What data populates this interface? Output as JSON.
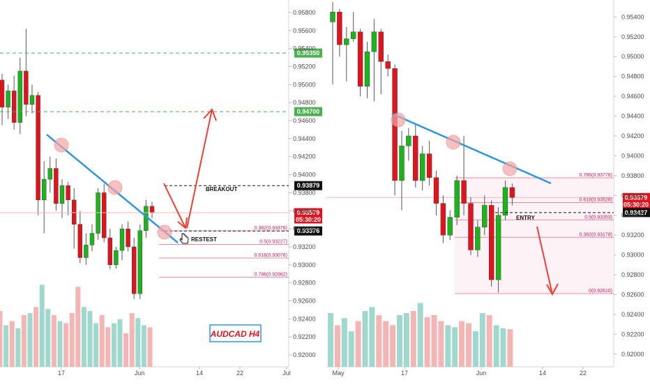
{
  "colors": {
    "up": "#1fb21f",
    "down": "#e0141e",
    "vol_up": "#8fd1c6",
    "vol_down": "#f2a8a8",
    "trend": "#2f96dd",
    "fib": "#e98aa0",
    "target_green": "#4caf50",
    "arrow": "#ef3e36",
    "highlight": "#f3a6a6"
  },
  "left_panel": {
    "price_ticks": [
      "0.95800",
      "0.95600",
      "0.95400",
      "0.95200",
      "0.95000",
      "0.94800",
      "0.94600",
      "0.94400",
      "0.94200",
      "0.94000",
      "0.93800",
      "0.93600",
      "0.93400",
      "0.93200",
      "0.93000",
      "0.92800",
      "0.92600",
      "0.92400",
      "0.92200",
      "0.92000"
    ],
    "date_ticks": [
      "17",
      "Jun",
      "14",
      "22",
      "Jul"
    ],
    "badges": [
      {
        "key": "g1",
        "text": "0.95350",
        "price": 0.9535,
        "bg": "#4caf50",
        "fg": "#ffffff"
      },
      {
        "key": "g2",
        "text": "0.94700",
        "price": 0.947,
        "bg": "#4caf50",
        "fg": "#ffffff"
      },
      {
        "key": "brk",
        "text": "0.93879",
        "price": 0.93879,
        "bg": "#111111",
        "fg": "#ffffff"
      },
      {
        "key": "cur",
        "text": "0.93579",
        "sub": "05:30:20",
        "price": 0.93579,
        "bg": "#e0141e",
        "fg": "#ffffff"
      },
      {
        "key": "lvl",
        "text": "0.93376",
        "price": 0.93376,
        "bg": "#111111",
        "fg": "#ffffff"
      }
    ],
    "fib_levels": [
      {
        "label": "0.382(0.93378)",
        "price": 0.93378
      },
      {
        "label": "0.5(0.93227)",
        "price": 0.93227
      },
      {
        "label": "0.618(0.93076)",
        "price": 0.93076
      },
      {
        "label": "0.786(0.92862)",
        "price": 0.92862
      }
    ],
    "breakout_label": "BREAKOUT",
    "retest_label": "RESTEST",
    "symbol_label": "AUDCAD H4"
  },
  "right_panel": {
    "price_ticks": [
      "0.95400",
      "0.95200",
      "0.95000",
      "0.94800",
      "0.94600",
      "0.94400",
      "0.94200",
      "0.94000",
      "0.93800",
      "0.93600",
      "0.93400",
      "0.93200",
      "0.93000",
      "0.92800",
      "0.92600",
      "0.92400",
      "0.92200",
      "0.92000"
    ],
    "date_ticks": [
      "May",
      "17",
      "Jun",
      "14",
      "22"
    ],
    "badges": [
      {
        "key": "cur",
        "text": "0.93579",
        "sub": "05:30:20",
        "price": 0.93579,
        "bg": "#e0141e",
        "fg": "#ffffff"
      },
      {
        "key": "entry",
        "text": "0.93427",
        "price": 0.93427,
        "bg": "#111111",
        "fg": "#ffffff"
      }
    ],
    "fib_levels": [
      {
        "label": "0.786(0.93778)",
        "price": 0.93778
      },
      {
        "label": "0.618(0.93528)",
        "price": 0.93528
      },
      {
        "label": "0.5(0.93353)",
        "price": 0.93353
      },
      {
        "label": "0.382(0.93178)",
        "price": 0.93178
      },
      {
        "label": "0(0.92610)",
        "price": 0.9261
      }
    ],
    "entry_label": "ENTRY"
  },
  "chart_data": [
    {
      "type": "candlestick",
      "title": "AUDCAD H4",
      "ylim": [
        0.919,
        0.959
      ],
      "x_ticks": [
        "17",
        "Jun",
        "14",
        "22",
        "Jul"
      ],
      "candles": [
        {
          "o": 0.9505,
          "h": 0.9512,
          "l": 0.9455,
          "c": 0.9475
        },
        {
          "o": 0.9475,
          "h": 0.95,
          "l": 0.9462,
          "c": 0.9493
        },
        {
          "o": 0.9493,
          "h": 0.951,
          "l": 0.945,
          "c": 0.9458
        },
        {
          "o": 0.9458,
          "h": 0.953,
          "l": 0.9445,
          "c": 0.9515
        },
        {
          "o": 0.9515,
          "h": 0.9562,
          "l": 0.9465,
          "c": 0.9478
        },
        {
          "o": 0.9478,
          "h": 0.95,
          "l": 0.9468,
          "c": 0.9488
        },
        {
          "o": 0.9488,
          "h": 0.9492,
          "l": 0.9355,
          "c": 0.9372
        },
        {
          "o": 0.9372,
          "h": 0.9415,
          "l": 0.9335,
          "c": 0.9395
        },
        {
          "o": 0.9395,
          "h": 0.942,
          "l": 0.938,
          "c": 0.9407
        },
        {
          "o": 0.9407,
          "h": 0.9418,
          "l": 0.936,
          "c": 0.9368
        },
        {
          "o": 0.9368,
          "h": 0.9395,
          "l": 0.9352,
          "c": 0.9388
        },
        {
          "o": 0.9388,
          "h": 0.9392,
          "l": 0.9355,
          "c": 0.9372
        },
        {
          "o": 0.9372,
          "h": 0.9385,
          "l": 0.9318,
          "c": 0.9345
        },
        {
          "o": 0.9345,
          "h": 0.936,
          "l": 0.9302,
          "c": 0.9308
        },
        {
          "o": 0.9308,
          "h": 0.9335,
          "l": 0.93,
          "c": 0.9322
        },
        {
          "o": 0.9322,
          "h": 0.9345,
          "l": 0.9315,
          "c": 0.9335
        },
        {
          "o": 0.9335,
          "h": 0.9385,
          "l": 0.9328,
          "c": 0.938
        },
        {
          "o": 0.938,
          "h": 0.939,
          "l": 0.9325,
          "c": 0.933
        },
        {
          "o": 0.933,
          "h": 0.934,
          "l": 0.9295,
          "c": 0.93
        },
        {
          "o": 0.93,
          "h": 0.932,
          "l": 0.9296,
          "c": 0.9316
        },
        {
          "o": 0.9316,
          "h": 0.9345,
          "l": 0.9305,
          "c": 0.934
        },
        {
          "o": 0.934,
          "h": 0.9348,
          "l": 0.9315,
          "c": 0.932
        },
        {
          "o": 0.932,
          "h": 0.933,
          "l": 0.9262,
          "c": 0.9268
        },
        {
          "o": 0.9268,
          "h": 0.9345,
          "l": 0.9262,
          "c": 0.9338
        },
        {
          "o": 0.9338,
          "h": 0.9372,
          "l": 0.933,
          "c": 0.9365
        },
        {
          "o": 0.9365,
          "h": 0.937,
          "l": 0.9352,
          "c": 0.9358
        }
      ],
      "volume": [
        62,
        48,
        52,
        45,
        58,
        60,
        66,
        88,
        64,
        58,
        52,
        50,
        60,
        86,
        66,
        62,
        50,
        58,
        46,
        50,
        54,
        40,
        60,
        55,
        48,
        46
      ]
    },
    {
      "type": "candlestick",
      "ylim": [
        0.919,
        0.9555
      ],
      "x_ticks": [
        "May",
        "17",
        "Jun",
        "14",
        "22"
      ],
      "candles": [
        {
          "o": 0.9535,
          "h": 0.9555,
          "l": 0.9472,
          "c": 0.9545
        },
        {
          "o": 0.9545,
          "h": 0.9548,
          "l": 0.95,
          "c": 0.9512
        },
        {
          "o": 0.9512,
          "h": 0.953,
          "l": 0.9475,
          "c": 0.9518
        },
        {
          "o": 0.9518,
          "h": 0.9545,
          "l": 0.9515,
          "c": 0.9525
        },
        {
          "o": 0.9525,
          "h": 0.9528,
          "l": 0.946,
          "c": 0.947
        },
        {
          "o": 0.947,
          "h": 0.9515,
          "l": 0.9458,
          "c": 0.9505
        },
        {
          "o": 0.9505,
          "h": 0.9538,
          "l": 0.9455,
          "c": 0.9525
        },
        {
          "o": 0.9525,
          "h": 0.9528,
          "l": 0.9462,
          "c": 0.9495
        },
        {
          "o": 0.9495,
          "h": 0.9502,
          "l": 0.948,
          "c": 0.9488
        },
        {
          "o": 0.9488,
          "h": 0.9492,
          "l": 0.936,
          "c": 0.9375
        },
        {
          "o": 0.9375,
          "h": 0.9425,
          "l": 0.9345,
          "c": 0.941
        },
        {
          "o": 0.941,
          "h": 0.9428,
          "l": 0.9395,
          "c": 0.942
        },
        {
          "o": 0.942,
          "h": 0.9432,
          "l": 0.9368,
          "c": 0.9375
        },
        {
          "o": 0.9375,
          "h": 0.941,
          "l": 0.9365,
          "c": 0.9402
        },
        {
          "o": 0.9402,
          "h": 0.9415,
          "l": 0.937,
          "c": 0.9378
        },
        {
          "o": 0.9378,
          "h": 0.9385,
          "l": 0.934,
          "c": 0.9352
        },
        {
          "o": 0.9352,
          "h": 0.936,
          "l": 0.9312,
          "c": 0.932
        },
        {
          "o": 0.932,
          "h": 0.9345,
          "l": 0.9315,
          "c": 0.9338
        },
        {
          "o": 0.9338,
          "h": 0.938,
          "l": 0.933,
          "c": 0.9375
        },
        {
          "o": 0.9375,
          "h": 0.942,
          "l": 0.934,
          "c": 0.9352
        },
        {
          "o": 0.9352,
          "h": 0.9358,
          "l": 0.93,
          "c": 0.9305
        },
        {
          "o": 0.9305,
          "h": 0.9335,
          "l": 0.9298,
          "c": 0.9328
        },
        {
          "o": 0.9328,
          "h": 0.936,
          "l": 0.932,
          "c": 0.935
        },
        {
          "o": 0.935,
          "h": 0.9355,
          "l": 0.9268,
          "c": 0.9275
        },
        {
          "o": 0.9275,
          "h": 0.9348,
          "l": 0.9262,
          "c": 0.934
        },
        {
          "o": 0.934,
          "h": 0.9375,
          "l": 0.9335,
          "c": 0.9368
        },
        {
          "o": 0.9368,
          "h": 0.9372,
          "l": 0.935,
          "c": 0.9358
        }
      ],
      "volume": [
        60,
        48,
        55,
        42,
        52,
        62,
        66,
        58,
        52,
        48,
        58,
        60,
        62,
        70,
        56,
        58,
        52,
        48,
        46,
        52,
        50,
        42,
        60,
        58,
        48,
        45,
        44
      ]
    }
  ]
}
